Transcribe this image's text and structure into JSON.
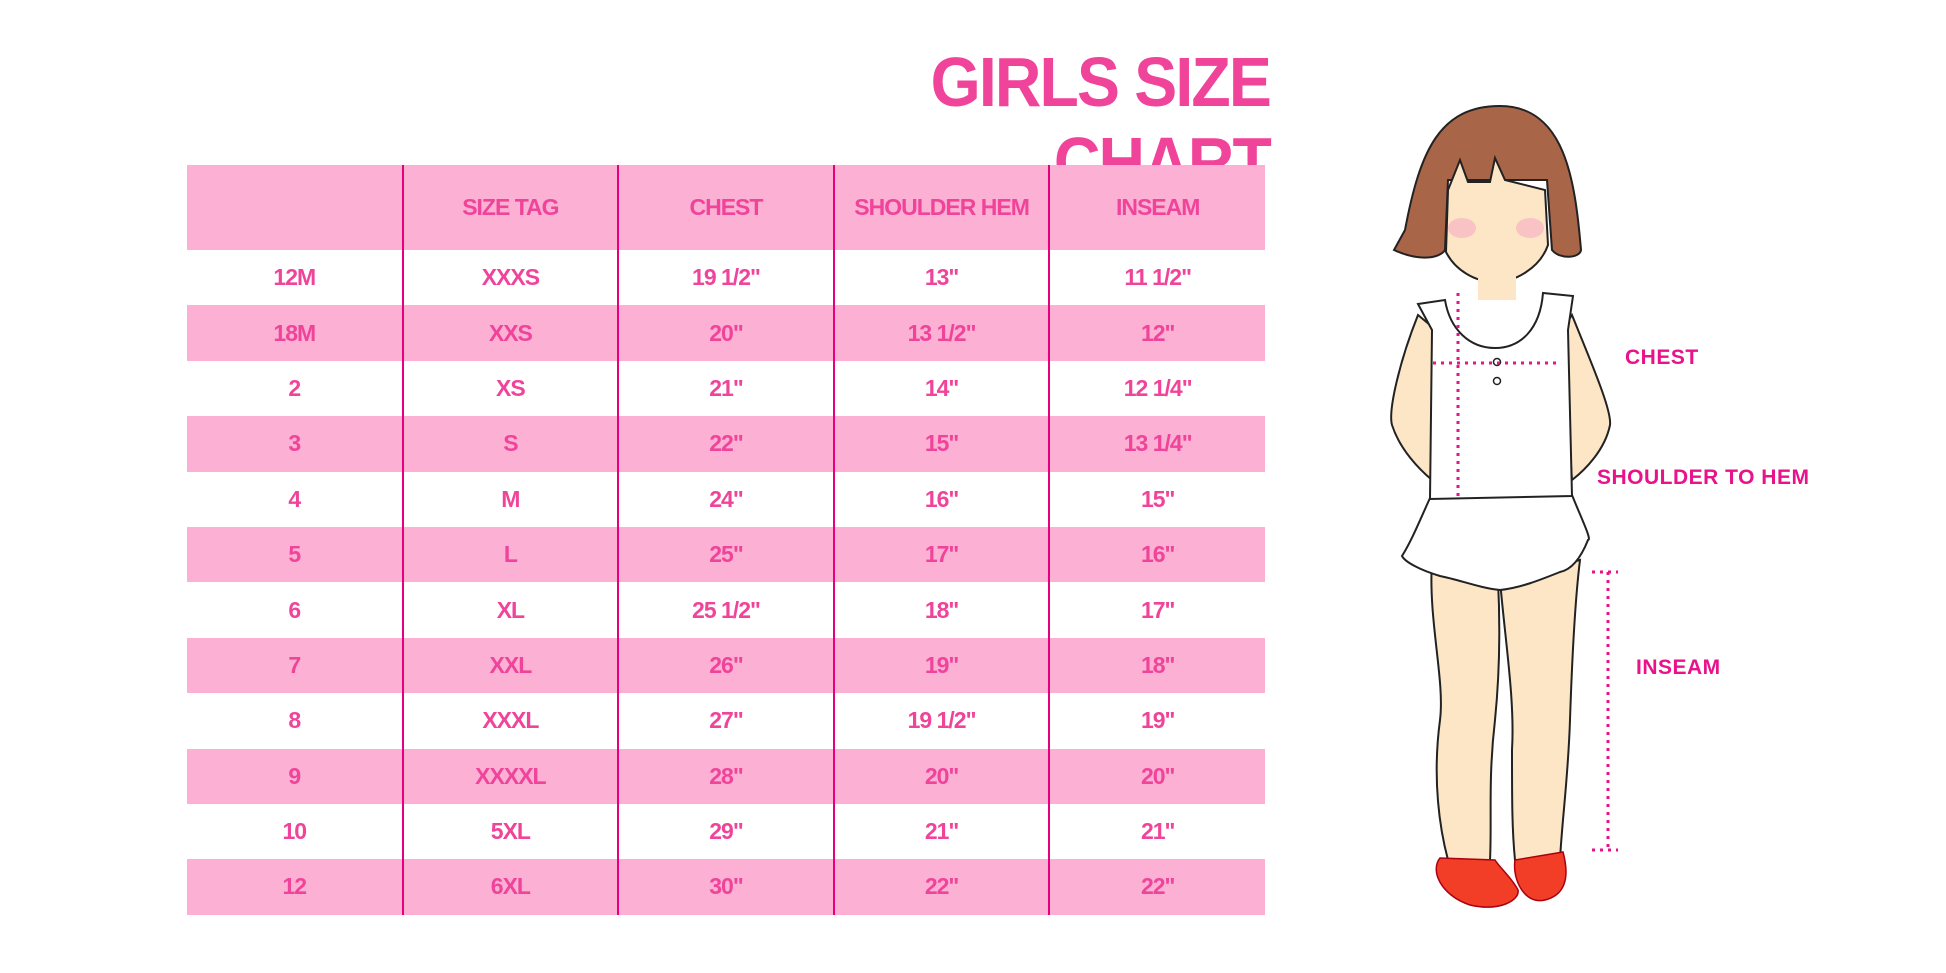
{
  "title": "GIRLS SIZE CHART",
  "colors": {
    "text": "#f0439a",
    "header_bg": "#fbb0d4",
    "divider": "#e6007e",
    "measure": "#e8128a"
  },
  "table": {
    "headers": [
      "",
      "SIZE TAG",
      "CHEST",
      "SHOULDER HEM",
      "INSEAM"
    ],
    "rows": [
      [
        "12M",
        "XXXS",
        "19 1/2\"",
        "13\"",
        "11 1/2\""
      ],
      [
        "18M",
        "XXS",
        "20\"",
        "13 1/2\"",
        "12\""
      ],
      [
        "2",
        "XS",
        "21\"",
        "14\"",
        "12 1/4\""
      ],
      [
        "3",
        "S",
        "22\"",
        "15\"",
        "13 1/4\""
      ],
      [
        "4",
        "M",
        "24\"",
        "16\"",
        "15\""
      ],
      [
        "5",
        "L",
        "25\"",
        "17\"",
        "16\""
      ],
      [
        "6",
        "XL",
        "25 1/2\"",
        "18\"",
        "17\""
      ],
      [
        "7",
        "XXL",
        "26\"",
        "19\"",
        "18\""
      ],
      [
        "8",
        "XXXL",
        "27\"",
        "19 1/2\"",
        "19\""
      ],
      [
        "9",
        "XXXXL",
        "28\"",
        "20\"",
        "20\""
      ],
      [
        "10",
        "5XL",
        "29\"",
        "21\"",
        "21\""
      ],
      [
        "12",
        "6XL",
        "30\"",
        "22\"",
        "22\""
      ]
    ]
  },
  "figure": {
    "labels": {
      "chest": "CHEST",
      "shoulder": "SHOULDER TO HEM",
      "inseam": "INSEAM"
    }
  }
}
